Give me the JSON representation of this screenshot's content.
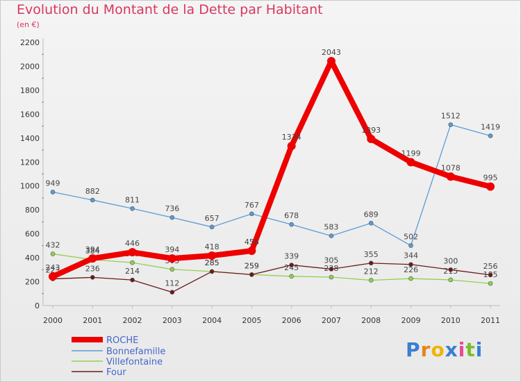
{
  "header": {
    "title": "Evolution du Montant de la Dette par Habitant",
    "subtitle": "(en €)"
  },
  "logo": {
    "letters": [
      "P",
      "r",
      "o",
      "x",
      "i",
      "t",
      "i"
    ],
    "colors": [
      "#3a7fd1",
      "#e8821d",
      "#f0b400",
      "#3a7fd1",
      "#e84a9a",
      "#7cbd2a",
      "#3a7fd1"
    ]
  },
  "chart_data": {
    "type": "line",
    "title": "Evolution du Montant de la Dette par Habitant",
    "subtitle": "(en €)",
    "xlabel": "",
    "ylabel": "",
    "ylim": [
      0,
      2200
    ],
    "yticks": [
      0,
      200,
      400,
      600,
      800,
      1000,
      1200,
      1400,
      1600,
      1800,
      2000,
      2200
    ],
    "grid": false,
    "legend_position": "bottom-left",
    "x": [
      "2000",
      "2001",
      "2002",
      "2003",
      "2004",
      "2005",
      "2006",
      "2007",
      "2008",
      "2009",
      "2010",
      "2011"
    ],
    "series": [
      {
        "name": "ROCHE",
        "color": "#ee0000",
        "values": [
          243,
          394,
          446,
          394,
          418,
          458,
          1334,
          2043,
          1393,
          1199,
          1078,
          995
        ],
        "labels": [
          "243",
          "394",
          "446",
          "394",
          "418",
          "458",
          "1334",
          "2043",
          "1393",
          "1199",
          "1078",
          "995"
        ]
      },
      {
        "name": "Bonnefamille",
        "color": "#5b9bd5",
        "values": [
          949,
          882,
          811,
          736,
          657,
          767,
          678,
          583,
          689,
          502,
          1512,
          1419
        ],
        "labels": [
          "949",
          "882",
          "811",
          "736",
          "657",
          "767",
          "678",
          "583",
          "689",
          "502",
          "1512",
          "1419"
        ]
      },
      {
        "name": "Villefontaine",
        "color": "#92d050",
        "values": [
          432,
          384,
          359,
          303,
          285,
          259,
          245,
          238,
          212,
          226,
          215,
          185
        ],
        "labels": [
          "432",
          "384",
          "359",
          "303",
          "285",
          "259",
          "245",
          "238",
          "212",
          "226",
          "215",
          "185"
        ]
      },
      {
        "name": "Four",
        "color": "#6b1a1a",
        "values": [
          223,
          236,
          214,
          112,
          285,
          259,
          339,
          305,
          355,
          344,
          300,
          256
        ],
        "labels": [
          "223",
          "236",
          "214",
          "112",
          "285",
          "259",
          "339",
          "305",
          "355",
          "344",
          "300",
          "256"
        ]
      }
    ]
  }
}
